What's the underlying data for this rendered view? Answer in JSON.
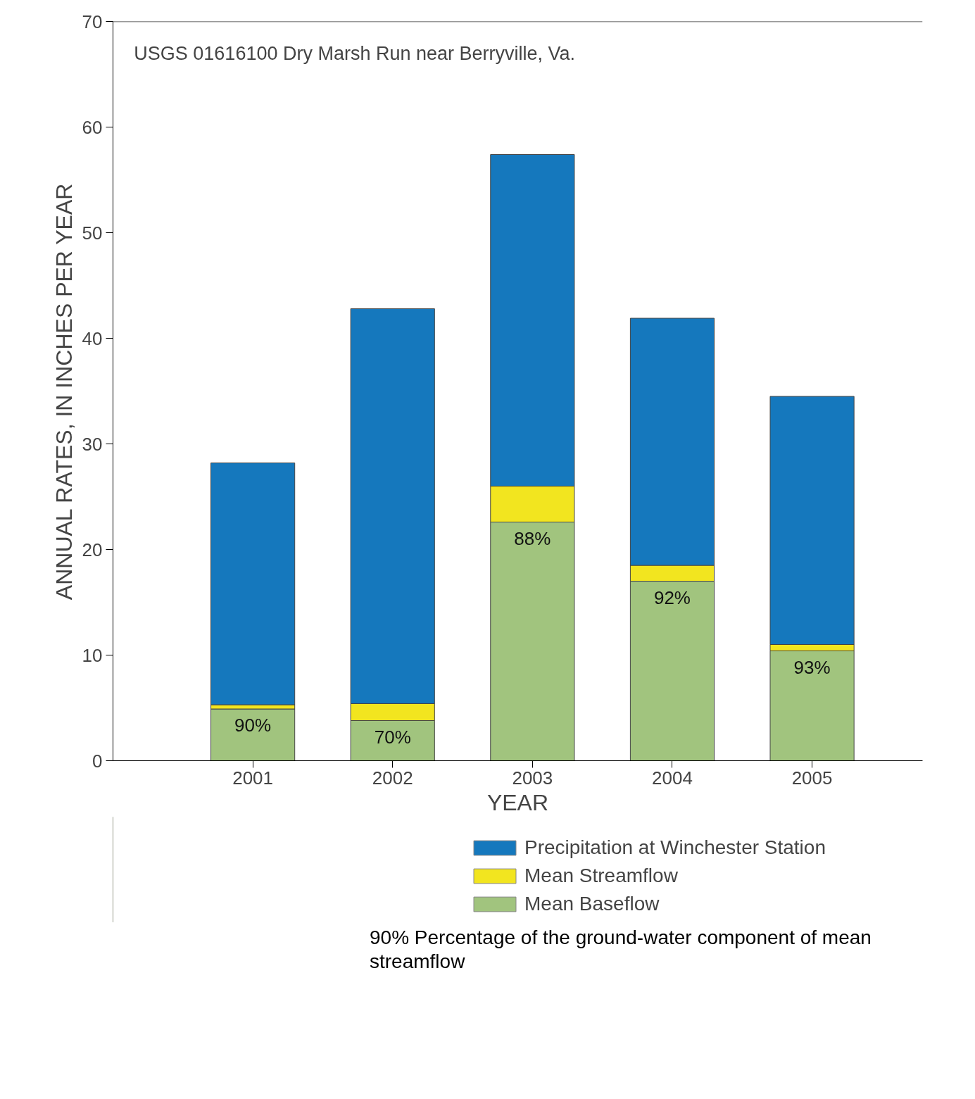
{
  "chart_data": {
    "type": "bar",
    "stacked": true,
    "title": "USGS 01616100 Dry Marsh Run near Berryville, Va.",
    "xlabel": "YEAR",
    "ylabel": "ANNUAL RATES, IN INCHES PER YEAR",
    "categories": [
      "2001",
      "2002",
      "2003",
      "2004",
      "2005"
    ],
    "series": [
      {
        "name": "Mean Baseflow",
        "color": "#a1c47e",
        "values": [
          4.9,
          3.8,
          22.6,
          17.0,
          10.4
        ]
      },
      {
        "name": "Mean Streamflow",
        "color": "#f2e51f",
        "values": [
          0.4,
          1.6,
          3.4,
          1.5,
          0.6
        ]
      },
      {
        "name": "Precipitation at Winchester Station",
        "color": "#1578bd",
        "values": [
          22.9,
          37.4,
          31.4,
          23.4,
          23.5
        ]
      }
    ],
    "ylim": [
      0,
      70
    ],
    "yticks": [
      0,
      10,
      20,
      30,
      40,
      50,
      60,
      70
    ],
    "legend": "bottom",
    "grid": false,
    "annotations": [
      {
        "text": "90%",
        "x": "2001",
        "y": 4.9
      },
      {
        "text": "70%",
        "x": "2002",
        "y": 3.8
      },
      {
        "text": "88%",
        "x": "2003",
        "y": 22.6
      },
      {
        "text": "92%",
        "x": "2004",
        "y": 17.0
      },
      {
        "text": "93%",
        "x": "2005",
        "y": 10.4
      },
      "90% Percentage of the ground-water component of mean streamflow"
    ]
  }
}
